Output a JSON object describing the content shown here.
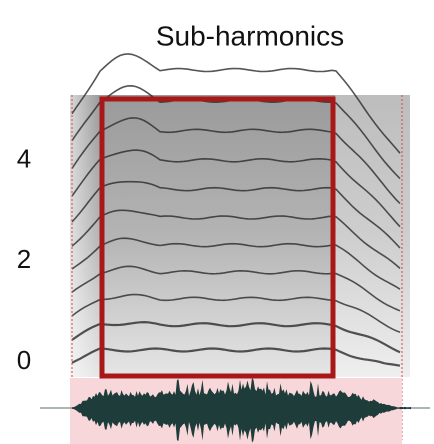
{
  "chart_data": {
    "type": "spectrogram",
    "title": "Sub-harmonics",
    "ylim": [
      -0.26,
      5.3
    ],
    "yticks": [
      0,
      2,
      4
    ]
  }
}
